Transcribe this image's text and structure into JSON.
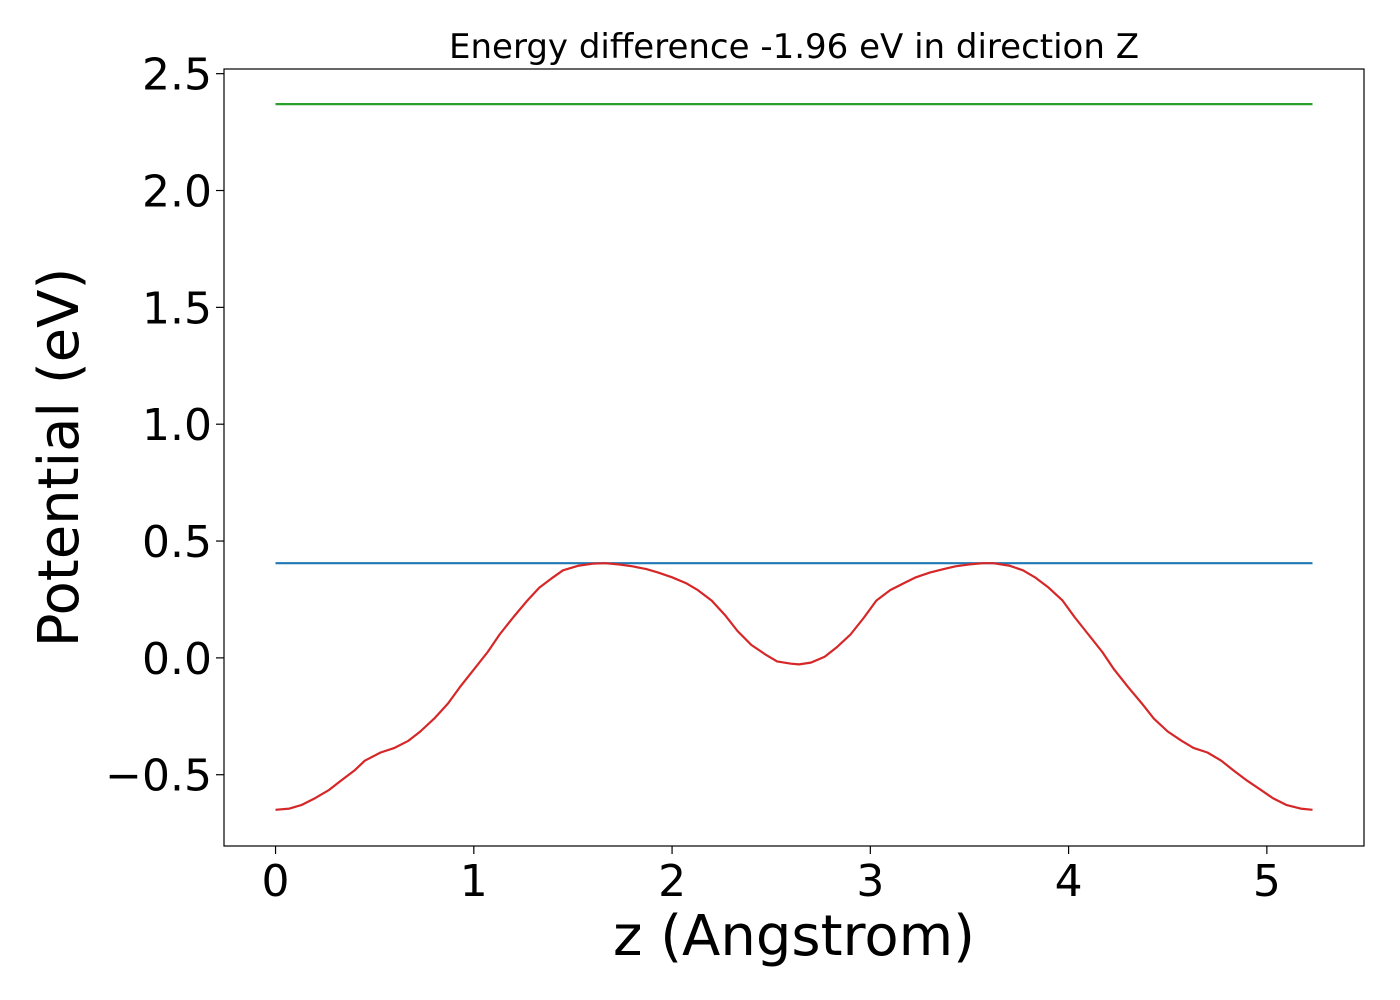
{
  "chart_data": {
    "type": "line",
    "title": "Energy difference -1.96 eV in direction Z",
    "xlabel": "z (Angstrom)",
    "ylabel": "Potential (eV)",
    "xlim": [
      -0.26,
      5.49
    ],
    "ylim": [
      -0.805,
      2.52
    ],
    "xticks": [
      0,
      1,
      2,
      3,
      4,
      5
    ],
    "xtick_labels": [
      "0",
      "1",
      "2",
      "3",
      "4",
      "5"
    ],
    "yticks": [
      -0.5,
      0.0,
      0.5,
      1.0,
      1.5,
      2.0,
      2.5
    ],
    "ytick_labels": [
      "−0.5",
      "0.0",
      "0.5",
      "1.0",
      "1.5",
      "2.0",
      "2.5"
    ],
    "grid": false,
    "series": [
      {
        "color": "#2ca02c",
        "x": [
          0,
          5.23
        ],
        "y": [
          2.37,
          2.37
        ]
      },
      {
        "color": "#1f77b4",
        "x": [
          0,
          5.23
        ],
        "y": [
          0.405,
          0.405
        ]
      },
      {
        "color": "#d62728",
        "x": [
          0,
          0.07,
          0.13,
          0.2,
          0.27,
          0.33,
          0.4,
          0.45,
          0.53,
          0.6,
          0.67,
          0.73,
          0.8,
          0.87,
          0.93,
          1.0,
          1.07,
          1.13,
          1.2,
          1.27,
          1.33,
          1.4,
          1.45,
          1.53,
          1.6,
          1.66,
          1.73,
          1.8,
          1.87,
          1.93,
          2.0,
          2.07,
          2.13,
          2.2,
          2.27,
          2.33,
          2.4,
          2.47,
          2.53,
          2.6,
          2.64,
          2.7,
          2.77,
          2.83,
          2.9,
          2.97,
          3.03,
          3.1,
          3.17,
          3.23,
          3.3,
          3.37,
          3.43,
          3.5,
          3.57,
          3.62,
          3.7,
          3.77,
          3.83,
          3.9,
          3.97,
          4.03,
          4.1,
          4.17,
          4.23,
          4.3,
          4.37,
          4.43,
          4.5,
          4.57,
          4.63,
          4.7,
          4.77,
          4.83,
          4.9,
          4.97,
          5.03,
          5.1,
          5.17,
          5.23
        ],
        "y": [
          -0.65,
          -0.645,
          -0.63,
          -0.6,
          -0.565,
          -0.525,
          -0.48,
          -0.44,
          -0.405,
          -0.385,
          -0.355,
          -0.315,
          -0.26,
          -0.195,
          -0.125,
          -0.05,
          0.025,
          0.1,
          0.175,
          0.245,
          0.3,
          0.345,
          0.375,
          0.395,
          0.403,
          0.405,
          0.4,
          0.392,
          0.38,
          0.365,
          0.345,
          0.32,
          0.29,
          0.245,
          0.18,
          0.115,
          0.055,
          0.015,
          -0.015,
          -0.025,
          -0.028,
          -0.02,
          0.005,
          0.045,
          0.1,
          0.175,
          0.245,
          0.29,
          0.32,
          0.345,
          0.365,
          0.38,
          0.392,
          0.4,
          0.405,
          0.405,
          0.395,
          0.375,
          0.345,
          0.3,
          0.245,
          0.175,
          0.1,
          0.025,
          -0.05,
          -0.125,
          -0.195,
          -0.26,
          -0.315,
          -0.355,
          -0.385,
          -0.405,
          -0.44,
          -0.48,
          -0.525,
          -0.565,
          -0.6,
          -0.63,
          -0.645,
          -0.65
        ]
      }
    ]
  }
}
